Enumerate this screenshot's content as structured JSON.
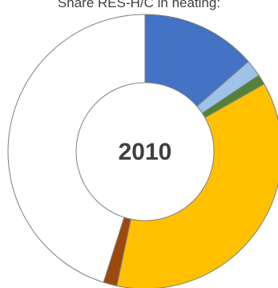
{
  "chart_data": {
    "type": "donut",
    "title": "Share RES-H/C in heating:",
    "center_label": "2010",
    "series": [
      {
        "value": 13.6,
        "color": "#4472C4"
      },
      {
        "value": 2.0,
        "color": "#9DC3E6"
      },
      {
        "value": 1.2,
        "color": "#548235"
      },
      {
        "value": 36.5,
        "color": "#FFC000"
      },
      {
        "value": 1.6,
        "color": "#9E480E"
      },
      {
        "value": 45.1,
        "color": "#FFFFFF"
      }
    ],
    "stroke_color": "#7F7F7F"
  }
}
